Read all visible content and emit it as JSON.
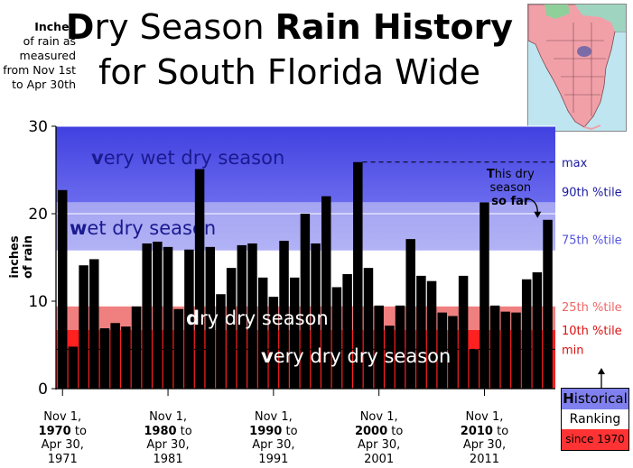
{
  "title": {
    "line1_part1": "D",
    "line1_part2": "ry Season ",
    "line1_part3": "Rain History",
    "line2": "for South Florida Wide"
  },
  "unit_note": {
    "heading": "Inches",
    "lines": [
      "of rain as",
      "measured",
      "from Nov 1st",
      "to Apr 30th"
    ]
  },
  "chart_data": {
    "type": "bar",
    "title": "Dry Season Rain History for South Florida Wide",
    "ylabel": "inches of rain",
    "ylim": [
      0,
      30
    ],
    "yticks": [
      0,
      10,
      20,
      30
    ],
    "x": [
      1970,
      1971,
      1972,
      1973,
      1974,
      1975,
      1976,
      1977,
      1978,
      1979,
      1980,
      1981,
      1982,
      1983,
      1984,
      1985,
      1986,
      1987,
      1988,
      1989,
      1990,
      1991,
      1992,
      1993,
      1994,
      1995,
      1996,
      1997,
      1998,
      1999,
      2000,
      2001,
      2002,
      2003,
      2004,
      2005,
      2006,
      2007,
      2008,
      2009,
      2010,
      2011,
      2012,
      2013,
      2014,
      2015,
      2016
    ],
    "values": [
      22.7,
      4.8,
      14.1,
      14.8,
      6.9,
      7.5,
      7.1,
      9.4,
      16.6,
      16.8,
      16.2,
      9.1,
      15.9,
      25.1,
      16.2,
      10.8,
      13.8,
      16.4,
      16.6,
      12.7,
      10.5,
      16.9,
      12.7,
      20.0,
      16.6,
      22.0,
      11.6,
      13.1,
      25.9,
      13.8,
      9.5,
      7.2,
      9.5,
      17.1,
      12.9,
      12.3,
      8.7,
      8.3,
      12.9,
      4.5,
      21.3,
      9.5,
      8.8,
      8.7,
      12.5,
      13.3,
      19.3
    ],
    "current_season_label": "This dry season so far",
    "thresholds": {
      "max": 25.9,
      "p90": 21.3,
      "p75": 15.8,
      "p25": 9.4,
      "p10": 6.7,
      "min": 4.5
    },
    "zones": [
      {
        "name": "very wet dry season",
        "color": "#5050e6"
      },
      {
        "name": "wet dry season",
        "color": "#9a9af0"
      },
      {
        "name": "dry dry season",
        "color": "#f08080"
      },
      {
        "name": "very dry dry season",
        "color": "#ff2020"
      }
    ],
    "right_labels": [
      {
        "key": "max",
        "text": "max",
        "color": "#1a1aa0"
      },
      {
        "key": "p90",
        "text": "90th %tile",
        "color": "#1a1aa0"
      },
      {
        "key": "p75",
        "text": "75th %tile",
        "color": "#5555dd"
      },
      {
        "key": "p25",
        "text": "25th %tile",
        "color": "#ee6666"
      },
      {
        "key": "p10",
        "text": "10th %tile",
        "color": "#dd1111"
      },
      {
        "key": "min",
        "text": "min",
        "color": "#dd1111"
      }
    ],
    "x_tick_labels": [
      {
        "line1": "Nov 1,",
        "year": "1970",
        "to": " to",
        "line3": "Apr 30,",
        "line4": "1971"
      },
      {
        "line1": "Nov 1,",
        "year": "1980",
        "to": " to",
        "line3": "Apr 30,",
        "line4": "1981"
      },
      {
        "line1": "Nov 1,",
        "year": "1990",
        "to": " to",
        "line3": "Apr 30,",
        "line4": "1991"
      },
      {
        "line1": "Nov 1,",
        "year": "2000",
        "to": " to",
        "line3": "Apr 30,",
        "line4": "2001"
      },
      {
        "line1": "Nov 1,",
        "year": "2010",
        "to": " to",
        "line3": "Apr 30,",
        "line4": "2011"
      }
    ],
    "grid": true
  },
  "annotation": {
    "line1_bold": "T",
    "line1_rest": "his dry",
    "line2": "season",
    "line3": "so far"
  },
  "legend": {
    "line1_bold": "H",
    "line1_rest": "istorical",
    "line2": "Ranking",
    "line3": "since 1970"
  },
  "colors": {
    "bar": "#000000",
    "very_wet": "#5050e6",
    "wet": "#9a9af0",
    "dry": "#f08080",
    "very_dry": "#ff2020"
  }
}
